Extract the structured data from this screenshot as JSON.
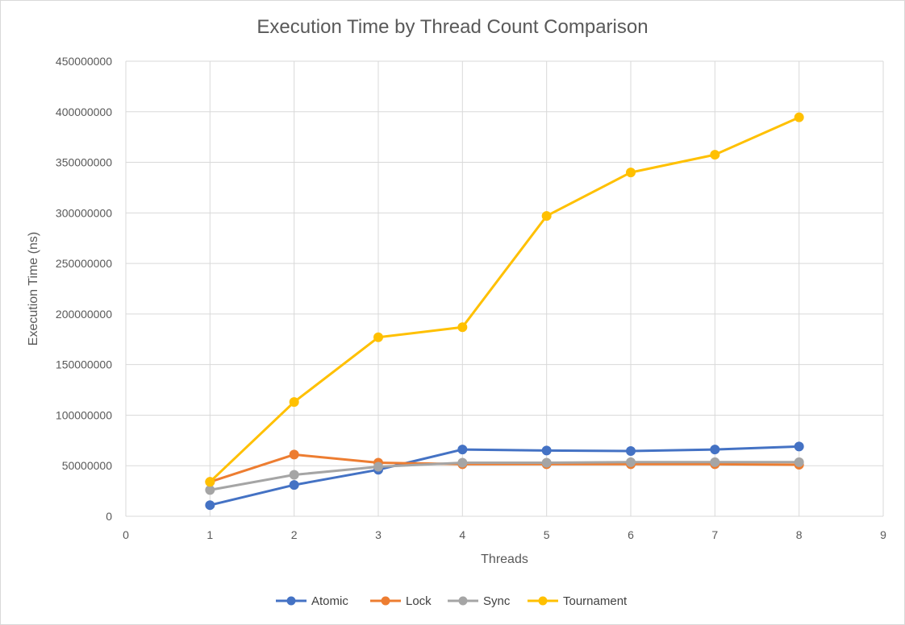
{
  "chart_data": {
    "type": "line",
    "title": "Execution Time by Thread Count Comparison",
    "xlabel": "Threads",
    "ylabel": "Execution Time (ns)",
    "xlim": [
      0,
      9
    ],
    "ylim": [
      0,
      450000000
    ],
    "x_ticks": [
      0,
      1,
      2,
      3,
      4,
      5,
      6,
      7,
      8,
      9
    ],
    "y_ticks": [
      0,
      50000000,
      100000000,
      150000000,
      200000000,
      250000000,
      300000000,
      350000000,
      400000000,
      450000000
    ],
    "grid": true,
    "legend_position": "bottom",
    "x": [
      1,
      2,
      3,
      4,
      5,
      6,
      7,
      8
    ],
    "series": [
      {
        "name": "Atomic",
        "color": "#4472C4",
        "values": [
          11000000,
          31000000,
          46000000,
          66000000,
          65000000,
          64500000,
          66000000,
          69000000
        ]
      },
      {
        "name": "Lock",
        "color": "#ED7D31",
        "values": [
          34000000,
          61000000,
          53000000,
          51500000,
          51500000,
          51500000,
          51500000,
          51000000
        ]
      },
      {
        "name": "Sync",
        "color": "#A5A5A5",
        "values": [
          26000000,
          41000000,
          49000000,
          53000000,
          53000000,
          53500000,
          53500000,
          53500000
        ]
      },
      {
        "name": "Tournament",
        "color": "#FFC000",
        "values": [
          34000000,
          113000000,
          177000000,
          187000000,
          297000000,
          340000000,
          357500000,
          394500000
        ]
      }
    ]
  }
}
